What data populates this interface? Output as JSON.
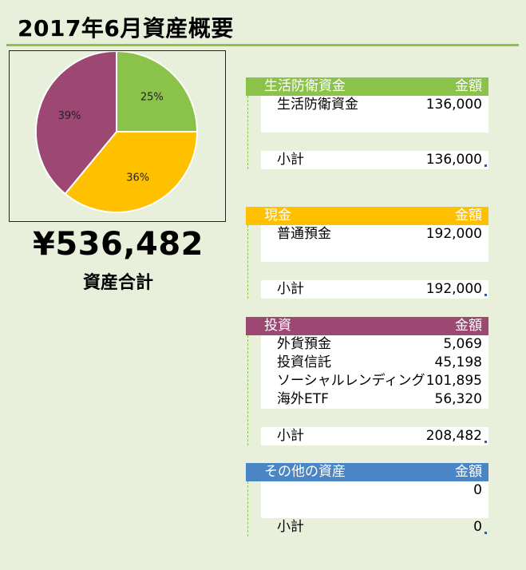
{
  "title": "2017年6月資産概要",
  "summary": {
    "total": "¥536,482",
    "total_label": "資産合計"
  },
  "chart_data": {
    "type": "pie",
    "slices": [
      {
        "label": "25%",
        "value": 25,
        "color": "#8bc34a"
      },
      {
        "label": "36%",
        "value": 36,
        "color": "#ffc000"
      },
      {
        "label": "39%",
        "value": 39,
        "color": "#9c4872"
      }
    ]
  },
  "sections": {
    "defense": {
      "title": "生活防衛資金",
      "amount_header": "金額",
      "color": "#8bc34a",
      "items": [
        {
          "name": "生活防衛資金",
          "amount": "136,000"
        }
      ],
      "subtotal_label": "小計",
      "subtotal": "136,000"
    },
    "cash": {
      "title": "現金",
      "amount_header": "金額",
      "color": "#ffc000",
      "items": [
        {
          "name": "普通預金",
          "amount": "192,000"
        }
      ],
      "subtotal_label": "小計",
      "subtotal": "192,000"
    },
    "invest": {
      "title": "投資",
      "amount_header": "金額",
      "color": "#9c4872",
      "items": [
        {
          "name": "外貨預金",
          "amount": "5,069"
        },
        {
          "name": "投資信託",
          "amount": "45,198"
        },
        {
          "name": "ソーシャルレンディング",
          "amount": "101,895"
        },
        {
          "name": "海外ETF",
          "amount": "56,320"
        }
      ],
      "subtotal_label": "小計",
      "subtotal": "208,482"
    },
    "other": {
      "title": "その他の資産",
      "amount_header": "金額",
      "color": "#4a86c5",
      "items": [
        {
          "name": "",
          "amount": "0"
        }
      ],
      "subtotal_label": "小計",
      "subtotal": "0"
    }
  }
}
